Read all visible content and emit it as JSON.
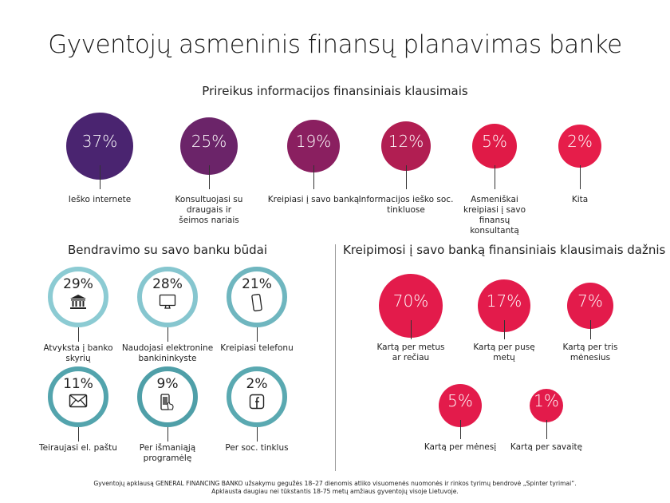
{
  "title": "Gyventojų asmeninis finansų planavimas banke",
  "colors": {
    "purple": "#4a2470",
    "crimson": "#e31b4b",
    "teal_light": "#86c8d0",
    "teal_dark": "#4a9fa8"
  },
  "chart_data": [
    {
      "type": "bubble",
      "title": "Prireikus informacijos finansiniais klausimais",
      "categories": [
        "Ieško internete",
        "Konsultuojasi su draugais ir šeimos nariais",
        "Kreipiasi į savo banką",
        "Informacijos ieško soc. tinkluose",
        "Asmeniškai kreipiasi į savo finansų konsultantą",
        "Kita"
      ],
      "values": [
        37,
        25,
        19,
        12,
        5,
        2
      ],
      "labels": [
        "37%",
        "25%",
        "19%",
        "12%",
        "5%",
        "2%"
      ]
    },
    {
      "type": "bubble",
      "title": "Bendravimo su savo banku būdai",
      "categories": [
        "Atvyksta į banko skyrių",
        "Naudojasi elektronine bankininkyste",
        "Kreipiasi telefonu",
        "Teiraujasi el. paštu",
        "Per išmaniąją programėlę",
        "Per soc. tinklus"
      ],
      "values": [
        29,
        28,
        21,
        11,
        9,
        2
      ],
      "labels": [
        "29%",
        "28%",
        "21%",
        "11%",
        "9%",
        "2%"
      ],
      "icons": [
        "bank-icon",
        "monitor-icon",
        "phone-icon",
        "envelope-icon",
        "smartphone-tap-icon",
        "facebook-icon"
      ]
    },
    {
      "type": "bubble",
      "title": "Kreipimosi į savo banką finansiniais klausimais dažnis",
      "categories": [
        "Kartą per metus ar rečiau",
        "Kartą per pusę metų",
        "Kartą per tris mėnesius",
        "Kartą per mėnesį",
        "Kartą per savaitę"
      ],
      "values": [
        70,
        17,
        7,
        5,
        1
      ],
      "labels": [
        "70%",
        "17%",
        "7%",
        "5%",
        "1%"
      ]
    }
  ],
  "footer": {
    "line1": "Gyventojų apklausą GENERAL FINANCING BANKO užsakymu gegužės 18–27 dienomis atliko visuomenės nuomonės ir rinkos tyrimų bendrovė „Spinter tyrimai“.",
    "line2": "Apklausta daugiau nei tūkstantis 18-75 metų amžiaus gyventojų visoje Lietuvoje."
  }
}
